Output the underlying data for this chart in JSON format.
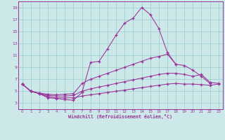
{
  "background_color": "#cce8e8",
  "grid_color": "#99cccc",
  "line_color": "#993399",
  "xlabel": "Windchill (Refroidissement éolien,°C)",
  "xlim": [
    -0.5,
    23.5
  ],
  "ylim": [
    2.0,
    20.0
  ],
  "yticks": [
    3,
    5,
    7,
    9,
    11,
    13,
    15,
    17,
    19
  ],
  "xticks": [
    0,
    1,
    2,
    3,
    4,
    5,
    6,
    7,
    8,
    9,
    10,
    11,
    12,
    13,
    14,
    15,
    16,
    17,
    18,
    19,
    20,
    21,
    22,
    23
  ],
  "series": [
    {
      "x": [
        0,
        1,
        2,
        3,
        4,
        5,
        6,
        7,
        8,
        9,
        10,
        11,
        12,
        13,
        14,
        15,
        16,
        17,
        18
      ],
      "y": [
        6.2,
        5.0,
        4.6,
        3.9,
        3.8,
        3.6,
        3.5,
        4.8,
        9.8,
        10.0,
        12.1,
        14.4,
        16.4,
        17.2,
        19.0,
        17.8,
        15.5,
        11.5,
        9.5
      ]
    },
    {
      "x": [
        0,
        1,
        2,
        3,
        4,
        5,
        6,
        7,
        8,
        9,
        10,
        11,
        12,
        13,
        14,
        15,
        16,
        17,
        18,
        19,
        20,
        21,
        22
      ],
      "y": [
        6.2,
        5.0,
        4.7,
        4.5,
        4.4,
        4.5,
        4.6,
        6.3,
        7.0,
        7.5,
        8.0,
        8.5,
        9.0,
        9.5,
        10.0,
        10.5,
        10.8,
        11.2,
        9.5,
        9.3,
        8.5,
        7.5,
        6.3
      ]
    },
    {
      "x": [
        0,
        1,
        2,
        3,
        4,
        5,
        6,
        7,
        8,
        9,
        10,
        11,
        12,
        13,
        14,
        15,
        16,
        17,
        18,
        19,
        20,
        21,
        22,
        23
      ],
      "y": [
        6.2,
        5.0,
        4.65,
        4.3,
        4.2,
        4.2,
        4.3,
        5.0,
        5.4,
        5.7,
        6.0,
        6.3,
        6.6,
        6.9,
        7.2,
        7.5,
        7.8,
        8.0,
        8.0,
        7.8,
        7.5,
        7.8,
        6.5,
        6.3
      ]
    },
    {
      "x": [
        0,
        1,
        2,
        3,
        4,
        5,
        6,
        7,
        8,
        9,
        10,
        11,
        12,
        13,
        14,
        15,
        16,
        17,
        18,
        19,
        20,
        21,
        22,
        23
      ],
      "y": [
        6.2,
        5.0,
        4.6,
        4.1,
        3.9,
        3.9,
        3.9,
        4.2,
        4.4,
        4.6,
        4.8,
        5.0,
        5.2,
        5.4,
        5.6,
        5.8,
        6.0,
        6.2,
        6.3,
        6.2,
        6.2,
        6.1,
        6.0,
        6.2
      ]
    }
  ]
}
